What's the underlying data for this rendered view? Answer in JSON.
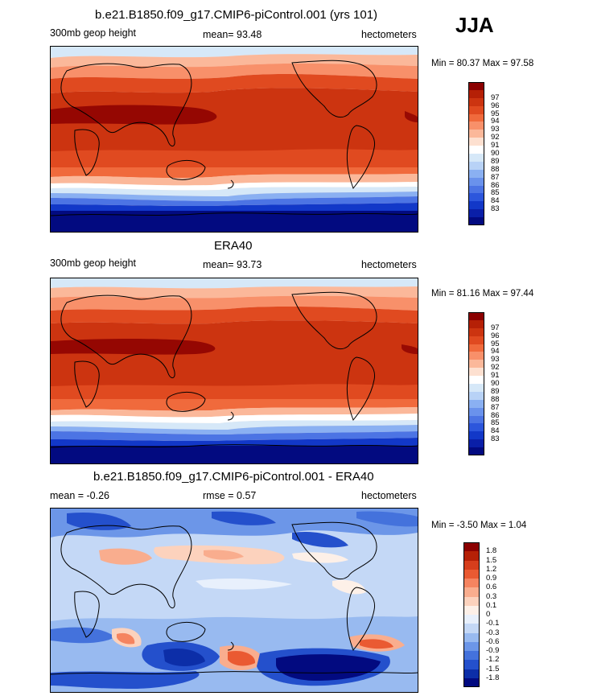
{
  "season": "JJA",
  "panels": [
    {
      "title": "b.e21.B1850.f09_g17.CMIP6-piControl.001 (yrs 101)",
      "variable": "300mb geop height",
      "mean_text": "mean=  93.48",
      "units": "hectometers",
      "minmax": "Min =  80.37 Max =  97.58",
      "colorbar": {
        "colors": [
          "#8b0000",
          "#b52006",
          "#cc3410",
          "#e04a20",
          "#f06a3c",
          "#f8906a",
          "#fbb89a",
          "#fde0d0",
          "#ffffff",
          "#d6e8f8",
          "#b8d2f6",
          "#8ab0f2",
          "#6a92ec",
          "#4c74e4",
          "#2c56dc",
          "#1238c8",
          "#0a1fa8",
          "#020a80"
        ],
        "labels": [
          "97",
          "96",
          "95",
          "94",
          "93",
          "92",
          "91",
          "90",
          "89",
          "88",
          "87",
          "86",
          "85",
          "84",
          "83"
        ]
      }
    },
    {
      "title": "ERA40",
      "variable": "300mb geop height",
      "mean_text": "mean=  93.73",
      "units": "hectometers",
      "minmax": "Min =  81.16 Max =  97.44",
      "colorbar": {
        "colors": [
          "#8b0000",
          "#b52006",
          "#cc3410",
          "#e04a20",
          "#f06a3c",
          "#f8906a",
          "#fbb89a",
          "#fde0d0",
          "#ffffff",
          "#d6e8f8",
          "#b8d2f6",
          "#8ab0f2",
          "#6a92ec",
          "#4c74e4",
          "#2c56dc",
          "#1238c8",
          "#0a1fa8",
          "#020a80"
        ],
        "labels": [
          "97",
          "96",
          "95",
          "94",
          "93",
          "92",
          "91",
          "90",
          "89",
          "88",
          "87",
          "86",
          "85",
          "84",
          "83"
        ]
      }
    },
    {
      "title": "b.e21.B1850.f09_g17.CMIP6-piControl.001 - ERA40",
      "variable": "mean =  -0.26",
      "mean_text": "rmse =   0.57",
      "units": "hectometers",
      "minmax": "Min =  -3.50 Max =   1.04",
      "colorbar": {
        "colors": [
          "#8b0000",
          "#b52006",
          "#d63e1c",
          "#ea5a32",
          "#f58460",
          "#f9ad8e",
          "#fcd2bd",
          "#fdf0e8",
          "#e8f0fc",
          "#c4d8f6",
          "#98baf0",
          "#6c96e8",
          "#4472dc",
          "#2450cc",
          "#0c2ea8",
          "#020a80"
        ],
        "labels": [
          "1.8",
          "1.5",
          "1.2",
          "0.9",
          "0.6",
          "0.3",
          "0.1",
          "0",
          "-0.1",
          "-0.3",
          "-0.6",
          "-0.9",
          "-1.2",
          "-1.5",
          "-1.8"
        ]
      }
    }
  ]
}
